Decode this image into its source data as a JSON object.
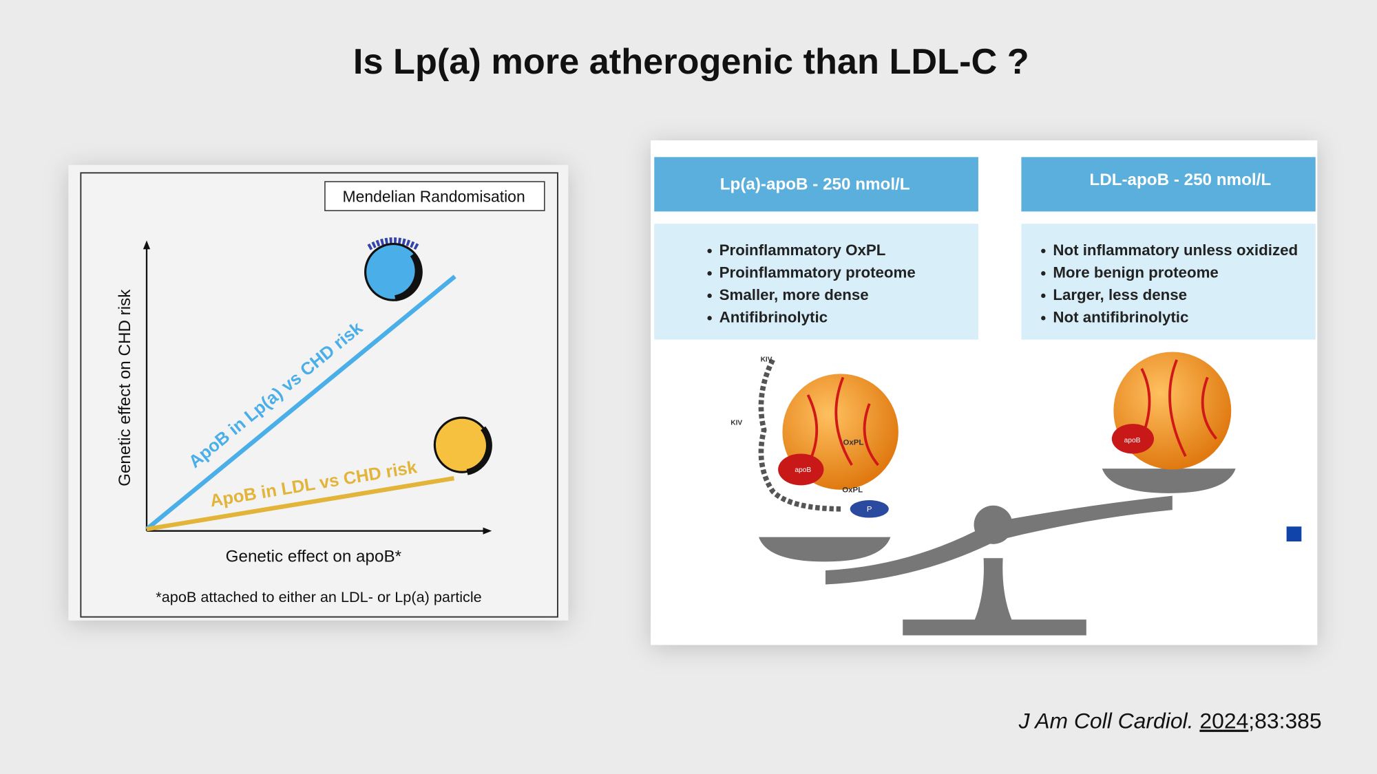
{
  "title": "Is Lp(a) more atherogenic than LDL-C ?",
  "left_panel": {
    "box_label": "Mendelian Randomisation",
    "y_axis_label": "Genetic effect on CHD risk",
    "x_axis_label": "Genetic effect on apoB*",
    "lines": [
      {
        "label": "ApoB in Lp(a) vs CHD risk",
        "color": "#4aaee8"
      },
      {
        "label": "ApoB in LDL vs CHD risk",
        "color": "#e3b43a"
      }
    ],
    "footnote": "*apoB attached to either an LDL- or Lp(a) particle"
  },
  "right_panel": {
    "columns": [
      {
        "header": "Lp(a)-apoB - 250 nmol/L",
        "bullets": [
          "Proinflammatory OxPL",
          "Proinflammatory proteome",
          "Smaller, more dense",
          "Antifibrinolytic"
        ]
      },
      {
        "header": "LDL-apoB - 250 nmol/L",
        "bullets": [
          "Not inflammatory unless oxidized",
          "More benign proteome",
          "Larger, less dense",
          "Not antifibrinolytic"
        ]
      }
    ],
    "illustration_labels": {
      "oxpl": "OxPL",
      "apob": "apoB",
      "p": "P",
      "kiv": "KIV"
    }
  },
  "citation": {
    "journal": "J Am Coll Cardiol.",
    "year": "2024",
    "details": ";83:385"
  }
}
